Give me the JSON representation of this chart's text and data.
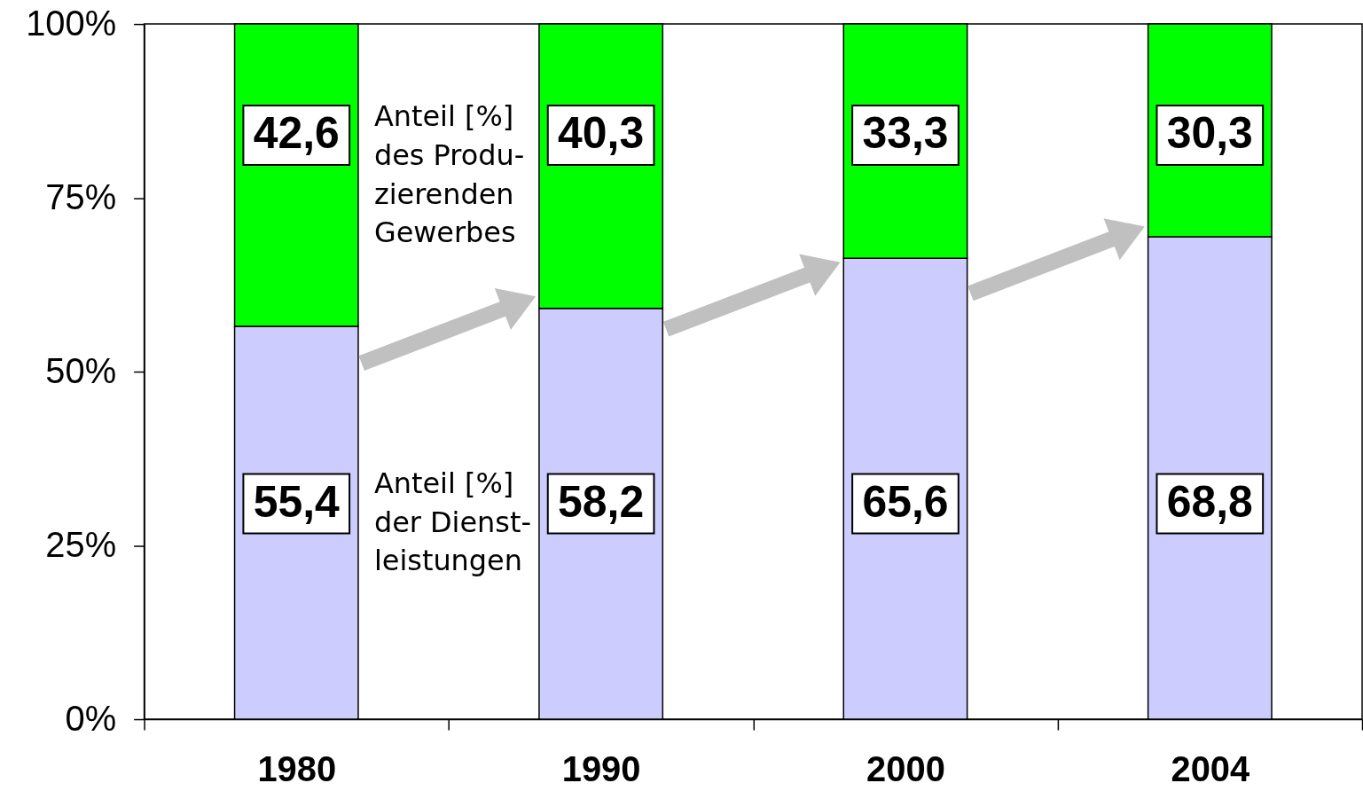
{
  "chart_data": {
    "type": "bar",
    "stacked": true,
    "legend": "left",
    "categories": [
      "1980",
      "1990",
      "2000",
      "2004"
    ],
    "series": [
      {
        "name": "Anteil [%]\nder Dienst-\nleistungen",
        "color": "#ccccff",
        "values": [
          56.5,
          59.1,
          66.3,
          69.4
        ]
      },
      {
        "name": "Anteil [%]\ndes Produ-\nzierenden\nGewerbes",
        "color": "#00ff00",
        "values": [
          43.5,
          40.9,
          33.7,
          30.6
        ]
      }
    ],
    "annotations": [
      "42,6",
      "40,3",
      "33,3",
      "30,3",
      "55,4",
      "58,2",
      "65,6",
      "68,8"
    ],
    "ylim": [
      0,
      100
    ],
    "yticks": [
      {
        "value": 0,
        "label": "0%"
      },
      {
        "value": 25,
        "label": "25%"
      },
      {
        "value": 50,
        "label": "50%"
      },
      {
        "value": 75,
        "label": "75%"
      },
      {
        "value": 100,
        "label": "100%"
      }
    ]
  }
}
